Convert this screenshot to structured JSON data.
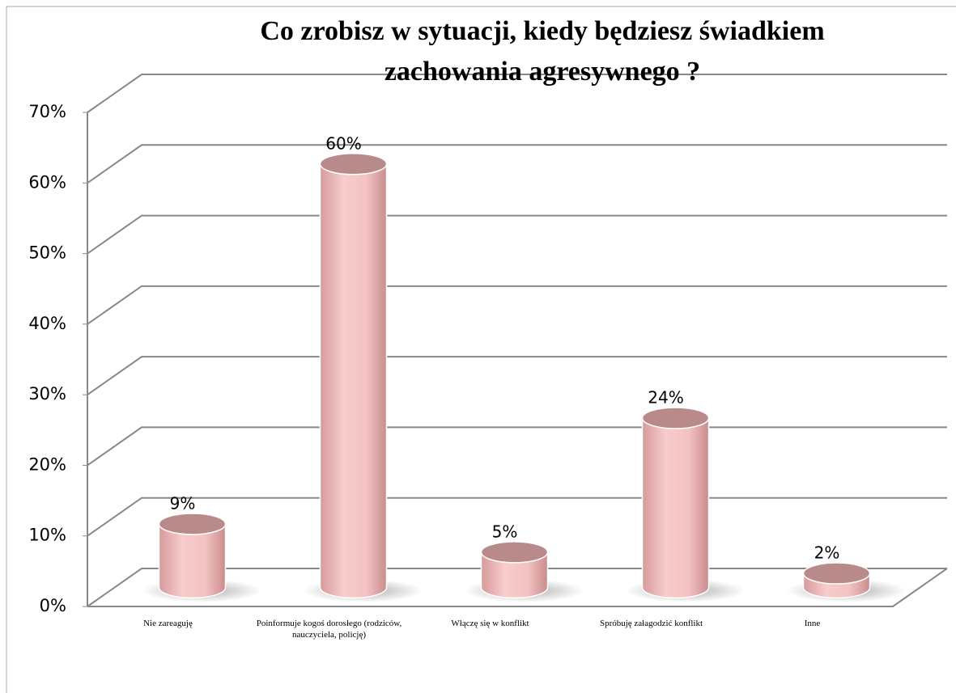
{
  "chart_data": {
    "type": "bar",
    "title": "Co zrobisz w sytuacji, kiedy będziesz świadkiem zachowania agresywnego ?",
    "categories": [
      "Nie zareaguję",
      "Poinformuje kogoś dorosłego (rodziców, nauczyciela, policję)",
      "Włączę się w konflikt",
      "Spróbuję załagodzić konflikt",
      "Inne"
    ],
    "values": [
      9,
      60,
      5,
      24,
      2
    ],
    "value_labels": [
      "9%",
      "60%",
      "5%",
      "24%",
      "2%"
    ],
    "color": "#f2c0c0",
    "ylim": [
      0,
      70
    ],
    "yticks": [
      {
        "value": 0,
        "label": "0%"
      },
      {
        "value": 10,
        "label": "10%"
      },
      {
        "value": 20,
        "label": "20%"
      },
      {
        "value": 30,
        "label": "30%"
      },
      {
        "value": 40,
        "label": "40%"
      },
      {
        "value": 50,
        "label": "50%"
      },
      {
        "value": 60,
        "label": "60%"
      },
      {
        "value": 70,
        "label": "70%"
      }
    ],
    "grid": true
  }
}
